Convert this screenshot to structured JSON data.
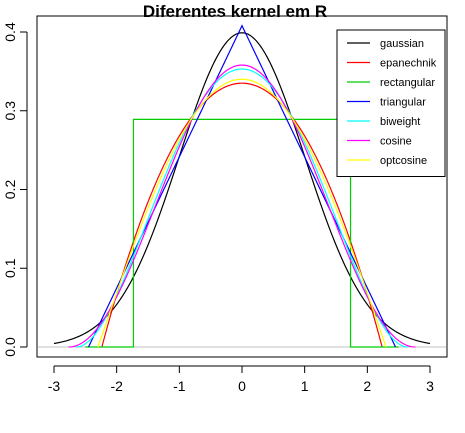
{
  "chart_data": {
    "type": "line",
    "title": "Diferentes kernel em R",
    "xlabel": "",
    "ylabel": "",
    "xlim": [
      -3,
      3
    ],
    "ylim": [
      0,
      0.4
    ],
    "xticks": [
      -3,
      -2,
      -1,
      0,
      1,
      2,
      3
    ],
    "xtick_labels": [
      "-3",
      "-2",
      "-1",
      "0",
      "1",
      "2",
      "3"
    ],
    "yticks": [
      0.0,
      0.1,
      0.2,
      0.3,
      0.4
    ],
    "ytick_labels": [
      "0.0",
      "0.1",
      "0.2",
      "0.3",
      "0.4"
    ],
    "grid": false,
    "legend_position": "top-right",
    "zero_line_color": "#c0c0c0",
    "series": [
      {
        "name": "gaussian",
        "color": "#000000",
        "kernel": "gaussian",
        "peak": 0.399
      },
      {
        "name": "epanechnik",
        "color": "#ff0000",
        "kernel": "epanechnikov",
        "peak": 0.335
      },
      {
        "name": "rectangular",
        "color": "#00cd00",
        "kernel": "rectangular",
        "peak": 0.289
      },
      {
        "name": "triangular",
        "color": "#0000ff",
        "kernel": "triangular",
        "peak": 0.408
      },
      {
        "name": "biweight",
        "color": "#00ffff",
        "kernel": "biweight",
        "peak": 0.353
      },
      {
        "name": "cosine",
        "color": "#ff00ff",
        "kernel": "cosine",
        "peak": 0.358
      },
      {
        "name": "optcosine",
        "color": "#ffff00",
        "kernel": "optcosine",
        "peak": 0.34
      }
    ]
  }
}
